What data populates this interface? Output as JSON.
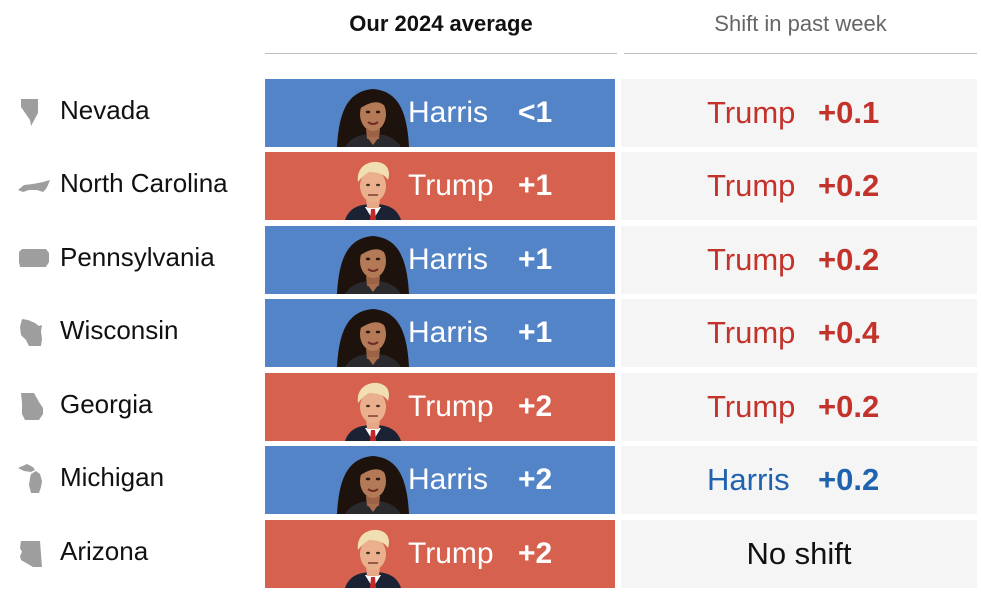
{
  "header": {
    "average_label": "Our 2024 average",
    "shift_label": "Shift in past week"
  },
  "colors": {
    "harris_fill": "#5484c8",
    "trump_fill": "#d5614e",
    "harris_text": "#1f63b0",
    "trump_text": "#c4332b",
    "state_icon": "#9e9e9e"
  },
  "chart_data": {
    "type": "table",
    "columns": [
      "Our 2024 average",
      "Shift in past week"
    ],
    "rows": [
      {
        "state": "Nevada",
        "state_icon": "nevada-shape-icon",
        "leader": "Harris",
        "margin": "<1",
        "shift_candidate": "Trump",
        "shift_value": "+0.1"
      },
      {
        "state": "North Carolina",
        "state_icon": "north-carolina-shape-icon",
        "leader": "Trump",
        "margin": "+1",
        "shift_candidate": "Trump",
        "shift_value": "+0.2"
      },
      {
        "state": "Pennsylvania",
        "state_icon": "pennsylvania-shape-icon",
        "leader": "Harris",
        "margin": "+1",
        "shift_candidate": "Trump",
        "shift_value": "+0.2"
      },
      {
        "state": "Wisconsin",
        "state_icon": "wisconsin-shape-icon",
        "leader": "Harris",
        "margin": "+1",
        "shift_candidate": "Trump",
        "shift_value": "+0.4"
      },
      {
        "state": "Georgia",
        "state_icon": "georgia-shape-icon",
        "leader": "Trump",
        "margin": "+2",
        "shift_candidate": "Trump",
        "shift_value": "+0.2"
      },
      {
        "state": "Michigan",
        "state_icon": "michigan-shape-icon",
        "leader": "Harris",
        "margin": "+2",
        "shift_candidate": "Harris",
        "shift_value": "+0.2"
      },
      {
        "state": "Arizona",
        "state_icon": "arizona-shape-icon",
        "leader": "Trump",
        "margin": "+2",
        "shift_candidate": "",
        "shift_value": "",
        "shift_text": "No shift"
      }
    ]
  }
}
